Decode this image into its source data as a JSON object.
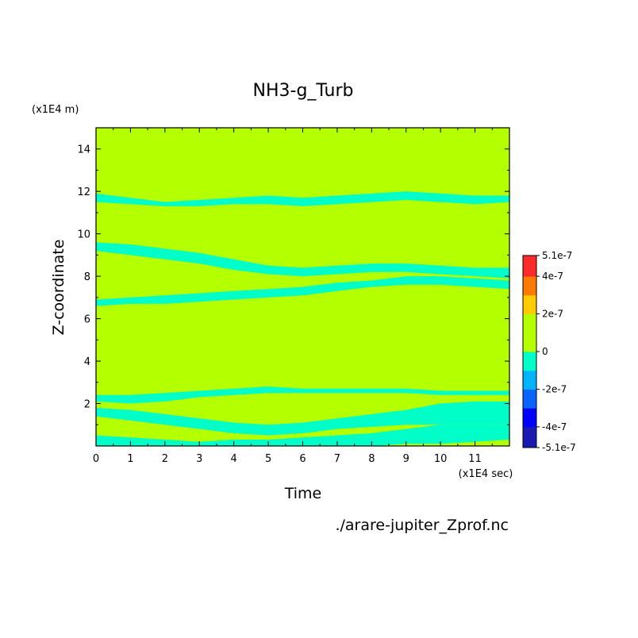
{
  "chart_data": {
    "type": "heatmap",
    "title": "NH3-g_Turb",
    "xlabel": "Time",
    "ylabel": "Z-coordinate",
    "x_unit": "(x1E4 sec)",
    "y_unit": "(x1E4 m)",
    "source_file": "./arare-jupiter_Zprof.nc",
    "x_ticks": [
      "0",
      "1",
      "2",
      "3",
      "4",
      "5",
      "6",
      "7",
      "8",
      "9",
      "10",
      "11"
    ],
    "y_ticks": [
      "2",
      "4",
      "6",
      "8",
      "10",
      "12",
      "14"
    ],
    "xlim": [
      0,
      12
    ],
    "ylim": [
      0,
      15
    ],
    "colorbar": {
      "range": [
        -5.1e-07,
        5.1e-07
      ],
      "tick_labels": [
        "5.1e-7",
        "4e-7",
        "2e-7",
        "0",
        "-2e-7",
        "-4e-7",
        "-5.1e-7"
      ],
      "tick_values": [
        5.1e-07,
        4e-07,
        2e-07,
        0,
        -2e-07,
        -4e-07,
        -5.1e-07
      ],
      "levels": [
        {
          "from": -5.1e-07,
          "to": -4e-07,
          "color": "#1a1ab0"
        },
        {
          "from": -4e-07,
          "to": -3e-07,
          "color": "#0000ff"
        },
        {
          "from": -3e-07,
          "to": -2e-07,
          "color": "#0a64ff"
        },
        {
          "from": -2e-07,
          "to": -1e-07,
          "color": "#00b4ff"
        },
        {
          "from": -1e-07,
          "to": 0,
          "color": "#00ffc8"
        },
        {
          "from": 0,
          "to": 1e-07,
          "color": "#b4ff00"
        },
        {
          "from": 1e-07,
          "to": 2e-07,
          "color": "#b4ff00"
        },
        {
          "from": 2e-07,
          "to": 3e-07,
          "color": "#ffcc00"
        },
        {
          "from": 3e-07,
          "to": 4e-07,
          "color": "#ff7a00"
        },
        {
          "from": 4e-07,
          "to": 5.1e-07,
          "color": "#ff2a2a"
        }
      ]
    },
    "background_color": "#b4ff00",
    "negative_region_color": "#00ffc8",
    "negative_bands": [
      {
        "t": [
          0,
          1,
          2,
          3,
          4,
          5,
          6,
          7,
          8,
          9,
          10,
          11,
          12
        ],
        "z_low": [
          11.5,
          11.4,
          11.3,
          11.3,
          11.4,
          11.4,
          11.3,
          11.4,
          11.5,
          11.6,
          11.5,
          11.4,
          11.5
        ],
        "z_high": [
          11.9,
          11.7,
          11.5,
          11.6,
          11.7,
          11.8,
          11.7,
          11.8,
          11.9,
          12.0,
          11.9,
          11.8,
          11.8
        ]
      },
      {
        "t": [
          0,
          1,
          2,
          3,
          4,
          5,
          6,
          7,
          8,
          9,
          10,
          11,
          12
        ],
        "z_low": [
          9.2,
          9.0,
          8.8,
          8.6,
          8.3,
          8.1,
          8.0,
          8.1,
          8.2,
          8.2,
          8.1,
          8.0,
          7.9
        ],
        "z_high": [
          9.6,
          9.5,
          9.3,
          9.1,
          8.8,
          8.5,
          8.4,
          8.5,
          8.6,
          8.6,
          8.5,
          8.4,
          8.4
        ]
      },
      {
        "t": [
          0,
          1,
          2,
          3,
          4,
          5,
          6,
          7,
          8,
          9,
          10,
          11,
          12
        ],
        "z_low": [
          6.6,
          6.7,
          6.7,
          6.8,
          6.9,
          7.0,
          7.1,
          7.3,
          7.5,
          7.6,
          7.6,
          7.5,
          7.4
        ],
        "z_high": [
          6.9,
          7.0,
          7.1,
          7.2,
          7.3,
          7.4,
          7.5,
          7.7,
          7.8,
          8.0,
          8.0,
          7.9,
          7.8
        ]
      },
      {
        "t": [
          0,
          1,
          2,
          3,
          4,
          5,
          6,
          7,
          8,
          9,
          10,
          11,
          12
        ],
        "z_low": [
          2.1,
          2.0,
          2.1,
          2.3,
          2.4,
          2.5,
          2.5,
          2.5,
          2.5,
          2.5,
          2.4,
          2.4,
          2.4
        ],
        "z_high": [
          2.4,
          2.4,
          2.5,
          2.6,
          2.7,
          2.8,
          2.7,
          2.7,
          2.7,
          2.7,
          2.6,
          2.6,
          2.6
        ]
      },
      {
        "t": [
          0,
          1,
          2,
          3,
          4,
          5,
          6,
          7,
          8,
          9,
          10,
          11,
          12
        ],
        "z_low": [
          1.4,
          1.2,
          1.0,
          0.8,
          0.6,
          0.5,
          0.6,
          0.8,
          0.9,
          1.0,
          1.0,
          1.0,
          1.0
        ],
        "z_high": [
          1.8,
          1.7,
          1.5,
          1.3,
          1.1,
          1.0,
          1.1,
          1.3,
          1.5,
          1.7,
          2.0,
          2.1,
          2.1
        ]
      },
      {
        "t": [
          0,
          1,
          2,
          3,
          4,
          5,
          6,
          7,
          8,
          9,
          10,
          11,
          12
        ],
        "z_low": [
          0.0,
          0.0,
          0.0,
          0.0,
          0.0,
          0.0,
          0.0,
          0.0,
          0.0,
          0.1,
          0.1,
          0.2,
          0.3
        ],
        "z_high": [
          0.5,
          0.4,
          0.3,
          0.2,
          0.3,
          0.3,
          0.4,
          0.5,
          0.6,
          0.8,
          1.0,
          1.0,
          1.0
        ]
      }
    ]
  }
}
